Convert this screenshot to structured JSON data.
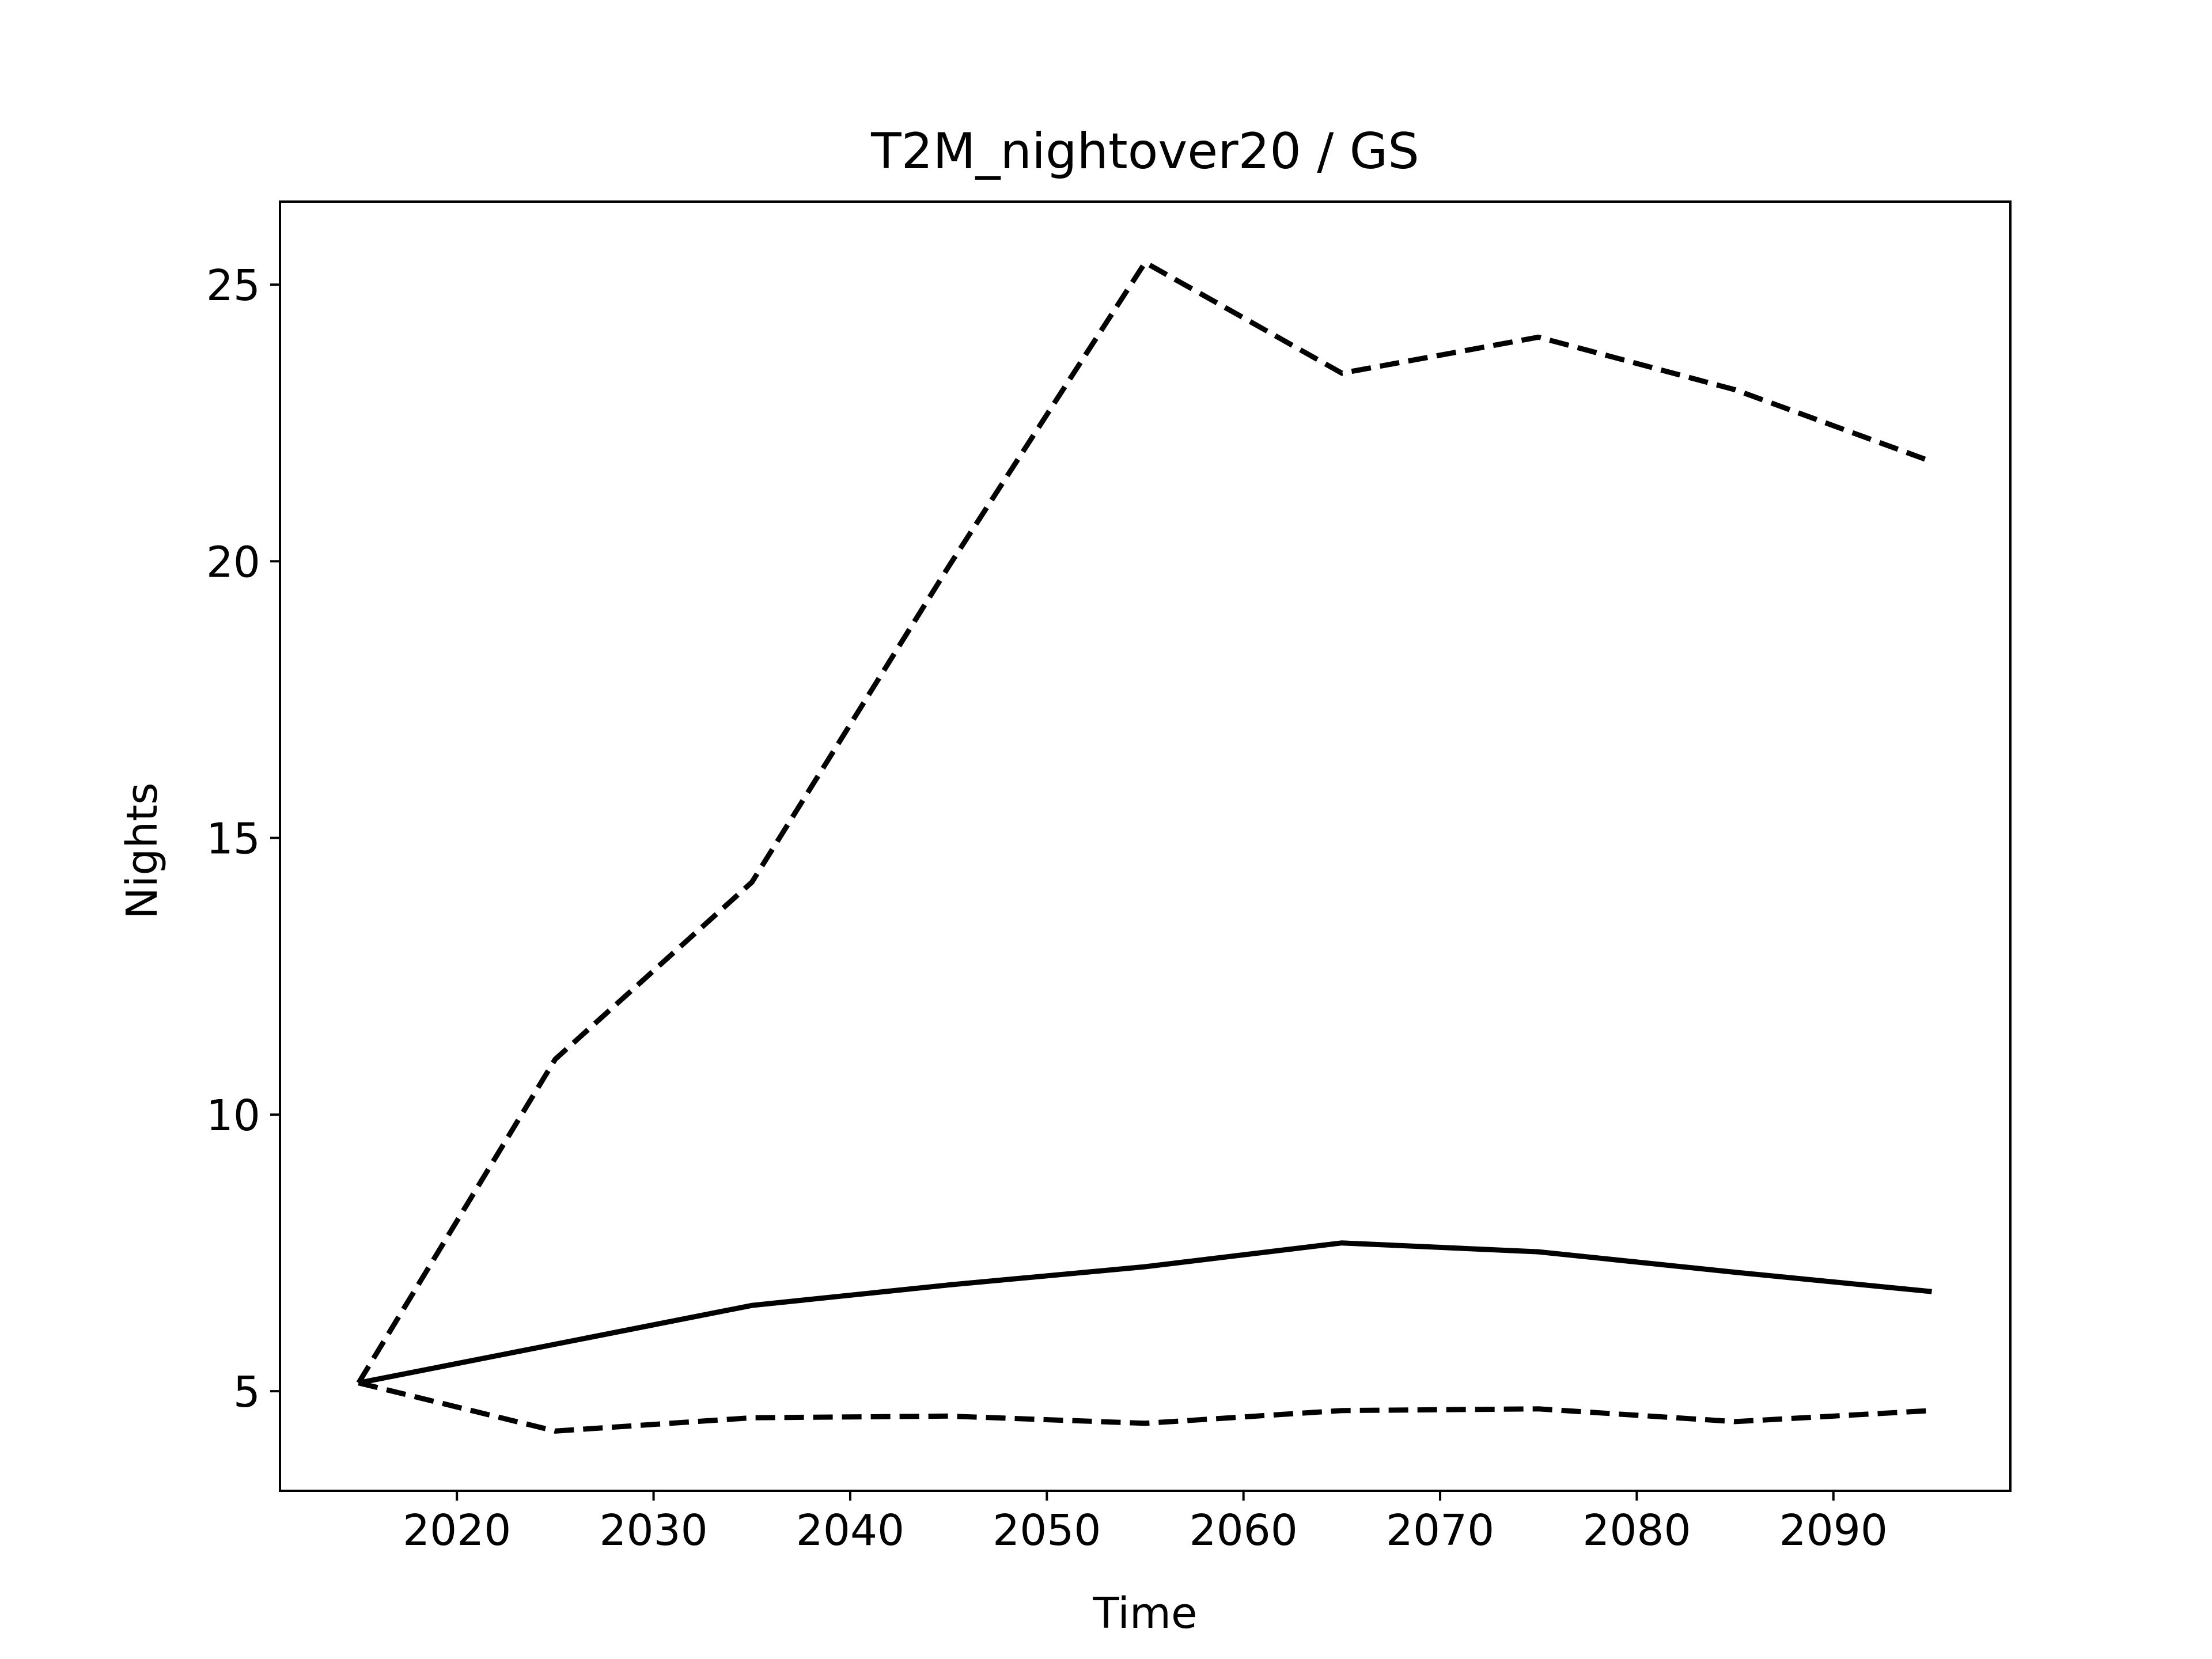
{
  "chart_data": {
    "type": "line",
    "title": "T2M_nightover20 / GS",
    "xlabel": "Time",
    "ylabel": "Nights",
    "xlim": [
      2011,
      2099
    ],
    "ylim": [
      3.2,
      26.5
    ],
    "xticks": [
      2020,
      2030,
      2040,
      2050,
      2060,
      2070,
      2080,
      2090
    ],
    "yticks": [
      5,
      10,
      15,
      20,
      25
    ],
    "grid": false,
    "x": [
      2015,
      2025,
      2035,
      2045,
      2055,
      2065,
      2075,
      2085,
      2095
    ],
    "series": [
      {
        "style": "solid",
        "color": "#000000",
        "values": [
          5.15,
          5.85,
          6.55,
          6.92,
          7.25,
          7.68,
          7.52,
          7.15,
          6.8
        ]
      },
      {
        "style": "dashed",
        "color": "#000000",
        "values": [
          5.15,
          11.0,
          14.2,
          19.9,
          25.4,
          23.4,
          24.05,
          23.1,
          21.8
        ]
      },
      {
        "style": "dashed",
        "color": "#000000",
        "values": [
          5.15,
          4.28,
          4.52,
          4.55,
          4.42,
          4.65,
          4.68,
          4.45,
          4.65
        ]
      }
    ]
  }
}
